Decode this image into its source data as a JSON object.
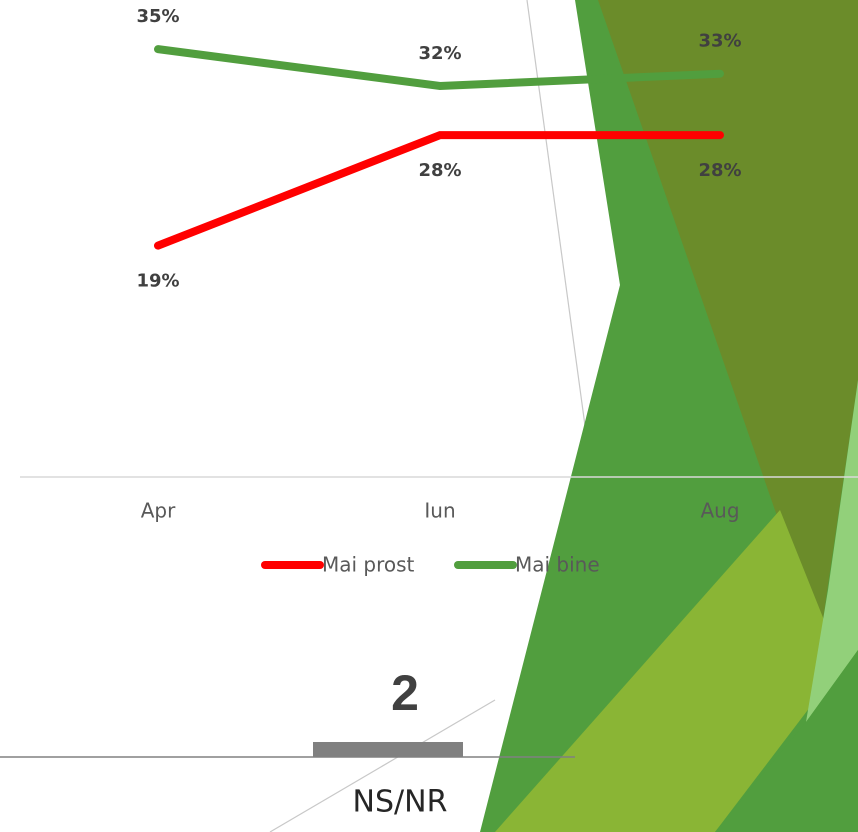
{
  "chart_data": [
    {
      "type": "line",
      "categories": [
        "Apr",
        "Iun",
        "Aug"
      ],
      "series": [
        {
          "name": "Mai prost",
          "color": "#ff0000",
          "values": [
            19,
            28,
            28
          ],
          "value_labels": [
            "19%",
            "28%",
            "28%"
          ]
        },
        {
          "name": "Mai bine",
          "color": "#519e3e",
          "values": [
            35,
            32,
            33
          ],
          "value_labels": [
            "35%",
            "32%",
            "33%"
          ]
        }
      ],
      "ylim": [
        0,
        39
      ],
      "legend": "bottom"
    },
    {
      "type": "bar",
      "categories": [
        "NS/NR"
      ],
      "values": [
        2
      ],
      "color": "#808080",
      "ylim": [
        0,
        40
      ]
    }
  ]
}
